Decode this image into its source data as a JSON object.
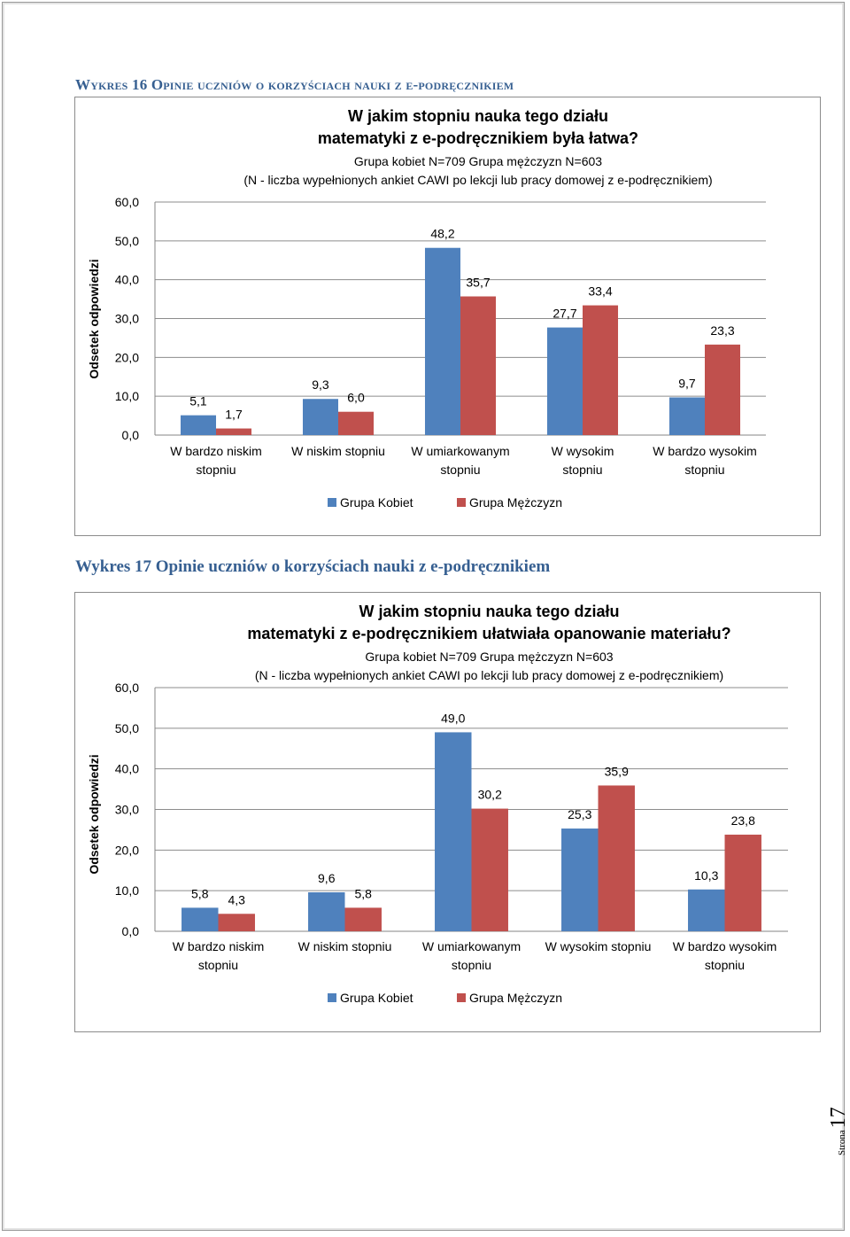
{
  "captions": {
    "chart16": "Wykres 16 Opinie uczniów o korzyściach nauki z e-podręcznikiem",
    "chart17": "Wykres 17 Opinie uczniów o korzyściach nauki z e-podręcznikiem"
  },
  "footer": {
    "label": "Strona",
    "page": "17"
  },
  "colors": {
    "kobiet": "#4f81bd",
    "mezczyzn": "#c0504d"
  },
  "chart_data": [
    {
      "type": "bar",
      "title_lines": [
        "W jakim stopniu nauka tego działu",
        "matematyki z e-podręcznikiem była łatwa?"
      ],
      "subtitle_lines": [
        "Grupa kobiet N=709 Grupa mężczyzn N=603",
        "(N - liczba wypełnionych ankiet CAWI po lekcji lub pracy domowej z e-podręcznikiem)"
      ],
      "ylabel": "Odsetek odpowiedzi",
      "xlabel": "",
      "ylim": [
        0,
        60
      ],
      "yticks": [
        "0,0",
        "10,0",
        "20,0",
        "30,0",
        "40,0",
        "50,0",
        "60,0"
      ],
      "categories": [
        [
          "W bardzo niskim",
          "stopniu"
        ],
        [
          "W niskim stopniu"
        ],
        [
          "W umiarkowanym",
          "stopniu"
        ],
        [
          "W wysokim",
          "stopniu"
        ],
        [
          "W bardzo wysokim",
          "stopniu"
        ]
      ],
      "series": [
        {
          "name": "Grupa Kobiet",
          "values": [
            5.1,
            9.3,
            48.2,
            27.7,
            9.7
          ],
          "labels": [
            "5,1",
            "9,3",
            "48,2",
            "27,7",
            "9,7"
          ]
        },
        {
          "name": "Grupa Mężczyzn",
          "values": [
            1.7,
            6.0,
            35.7,
            33.4,
            23.3
          ],
          "labels": [
            "1,7",
            "6,0",
            "35,7",
            "33,4",
            "23,3"
          ]
        }
      ],
      "grid": true,
      "legend": "bottom"
    },
    {
      "type": "bar",
      "title_lines": [
        "W jakim stopniu nauka tego działu",
        "matematyki z e-podręcznikiem ułatwiała opanowanie materiału?"
      ],
      "subtitle_lines": [
        "Grupa kobiet N=709 Grupa mężczyzn N=603",
        "(N - liczba wypełnionych ankiet CAWI po lekcji lub pracy domowej z e-podręcznikiem)"
      ],
      "ylabel": "Odsetek odpowiedzi",
      "xlabel": "",
      "ylim": [
        0,
        60
      ],
      "yticks": [
        "0,0",
        "10,0",
        "20,0",
        "30,0",
        "40,0",
        "50,0",
        "60,0"
      ],
      "categories": [
        [
          "W bardzo niskim",
          "stopniu"
        ],
        [
          "W niskim stopniu"
        ],
        [
          "W umiarkowanym",
          "stopniu"
        ],
        [
          "W wysokim stopniu"
        ],
        [
          "W bardzo wysokim",
          "stopniu"
        ]
      ],
      "series": [
        {
          "name": "Grupa Kobiet",
          "values": [
            5.8,
            9.6,
            49.0,
            25.3,
            10.3
          ],
          "labels": [
            "5,8",
            "9,6",
            "49,0",
            "25,3",
            "10,3"
          ]
        },
        {
          "name": "Grupa Mężczyzn",
          "values": [
            4.3,
            5.8,
            30.2,
            35.9,
            23.8
          ],
          "labels": [
            "4,3",
            "5,8",
            "30,2",
            "35,9",
            "23,8"
          ]
        }
      ],
      "grid": true,
      "legend": "bottom"
    }
  ]
}
